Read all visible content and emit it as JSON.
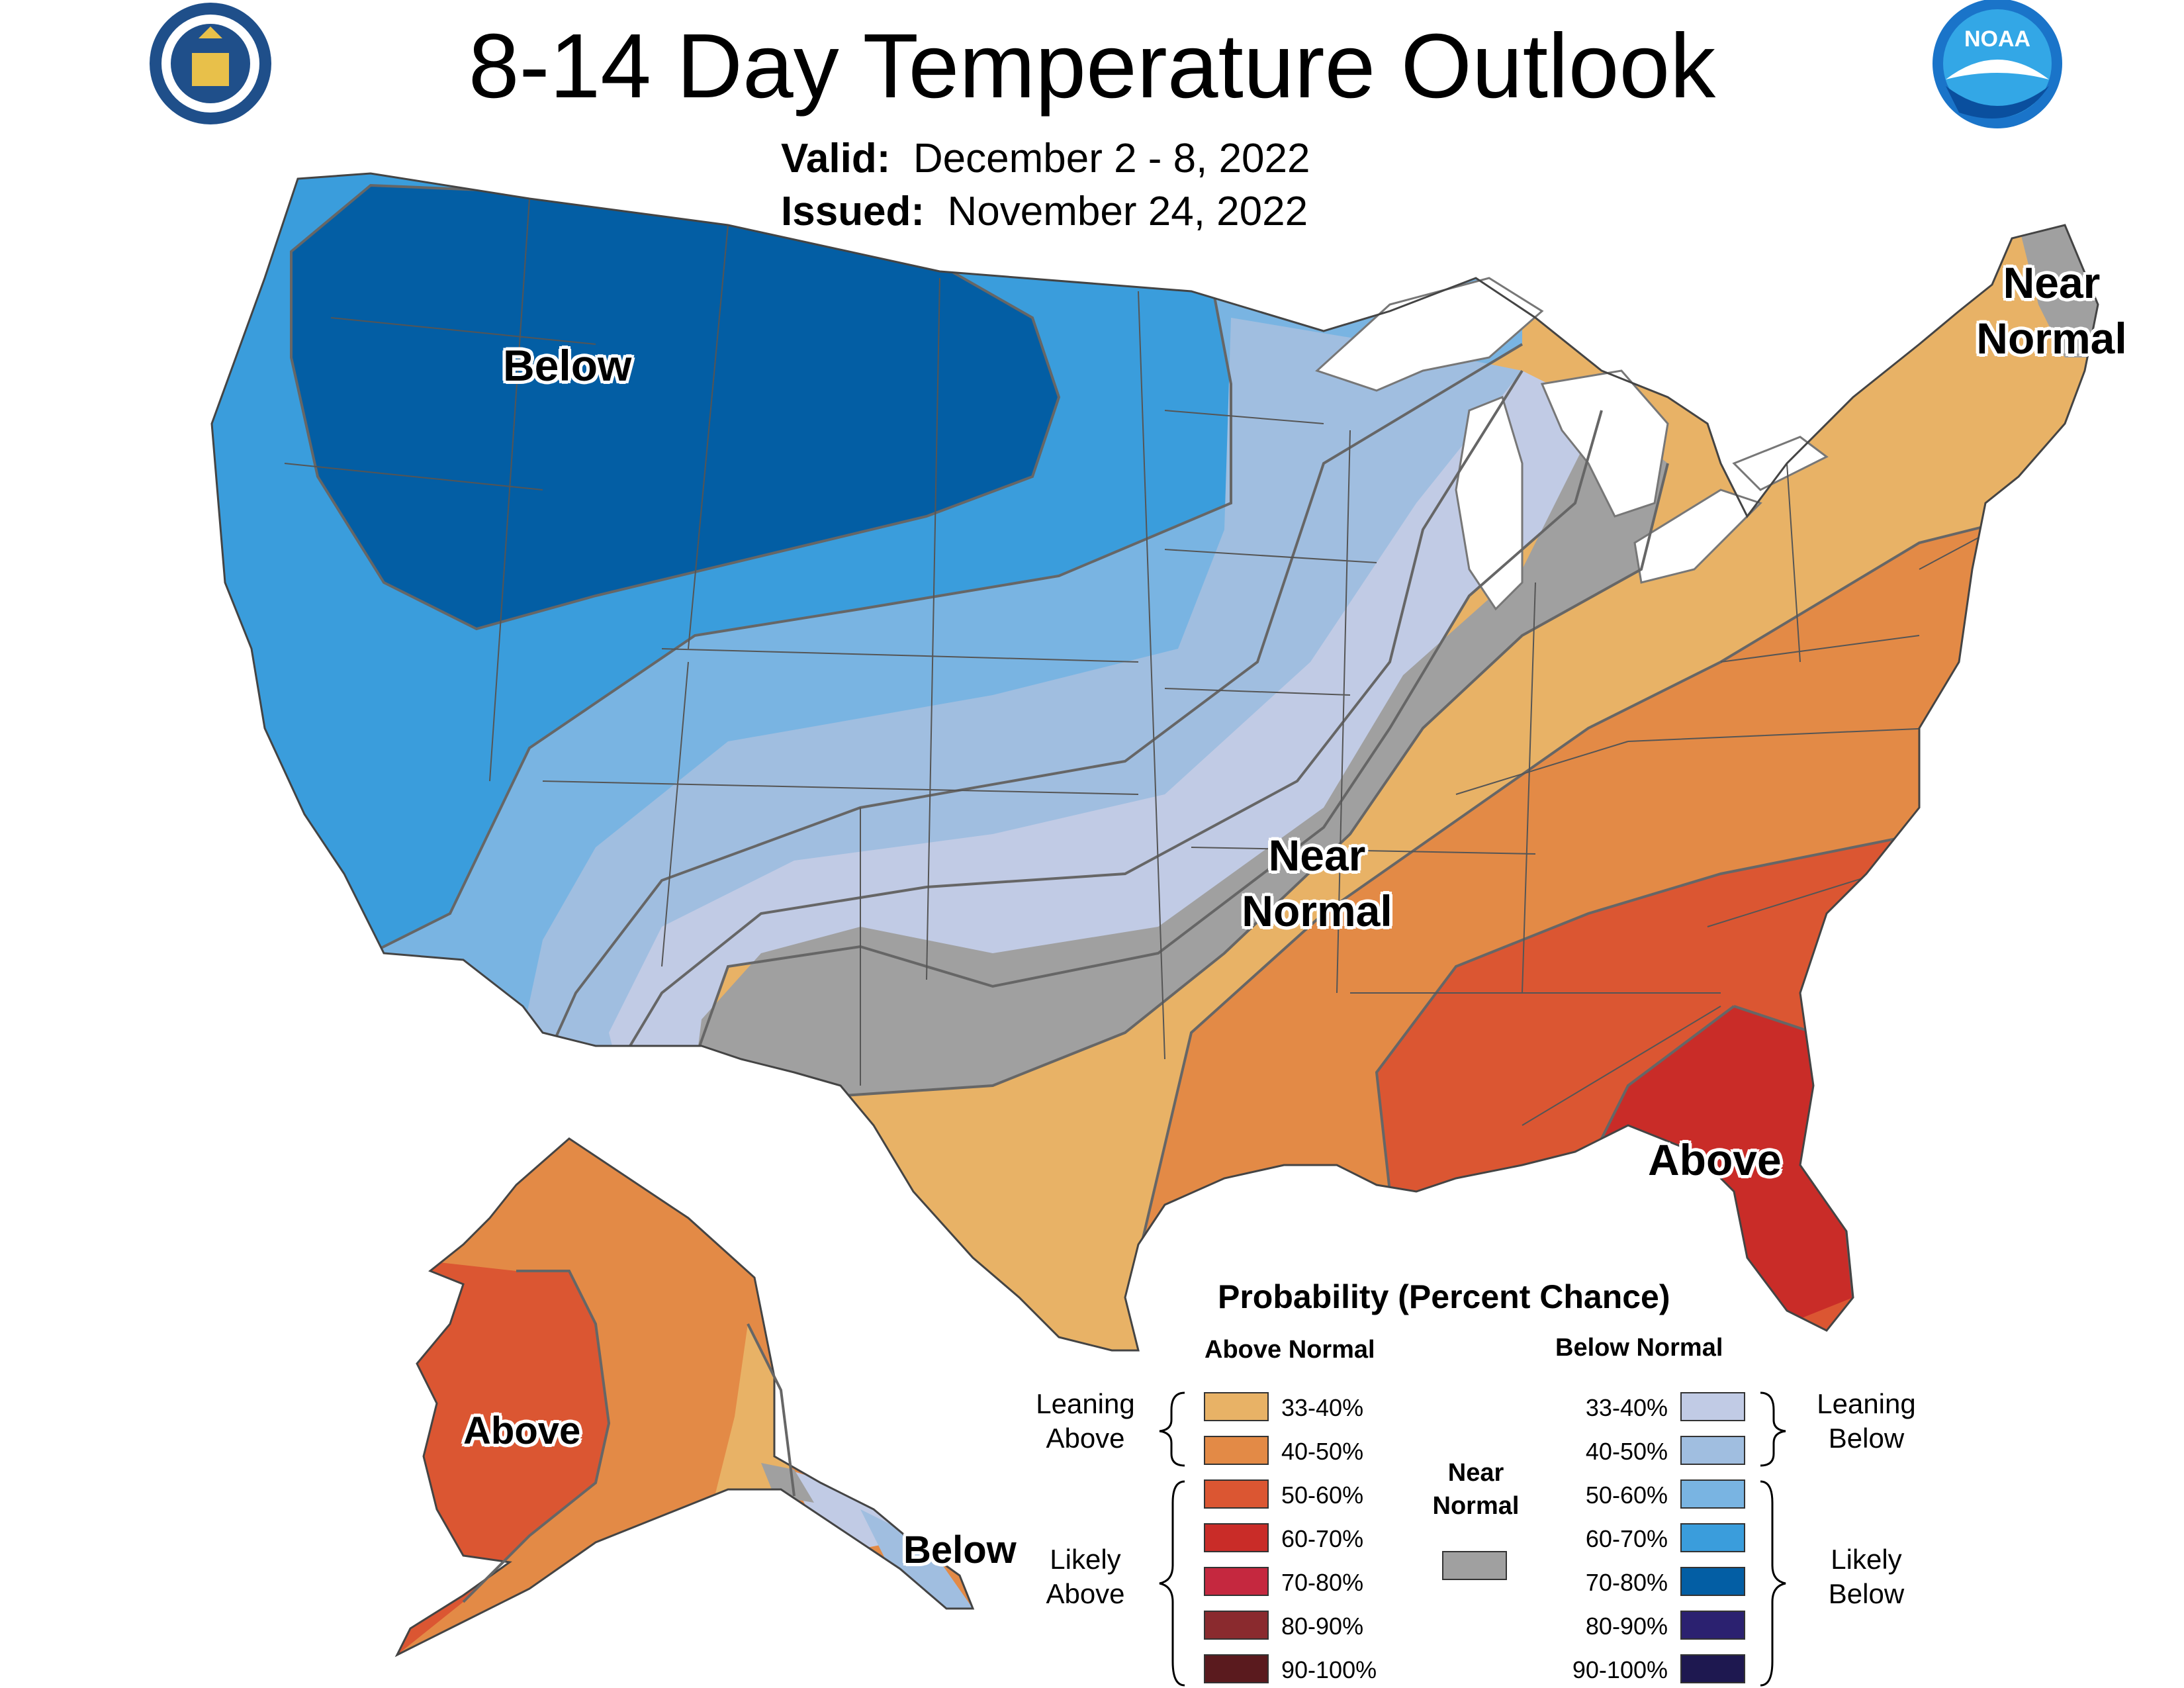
{
  "title": "8-14 Day Temperature Outlook",
  "valid": {
    "label": "Valid:",
    "value": "December 2 - 8, 2022"
  },
  "issued": {
    "label": "Issued:",
    "value": "November 24, 2022"
  },
  "logos": {
    "left": "department-of-commerce-seal",
    "right": "noaa-logo",
    "noaa_text": "NOAA"
  },
  "region_labels": {
    "conus_below": "Below",
    "conus_near_normal": [
      "Near",
      "Normal"
    ],
    "ne_near_normal": [
      "Near",
      "Normal"
    ],
    "conus_above": "Above",
    "alaska_above": "Above",
    "alaska_below": "Below"
  },
  "colors": {
    "above_33_40": "#E8B266",
    "above_40_50": "#E38A46",
    "above_50_60": "#DB5632",
    "above_60_70": "#C92C28",
    "above_70_80": "#C5283F",
    "above_80_90": "#8A2A2E",
    "above_90_100": "#5A1A1E",
    "near_normal": "#A0A0A0",
    "below_33_40": "#C1CBE5",
    "below_40_50": "#A0BEE0",
    "below_50_60": "#79B4E2",
    "below_60_70": "#3A9DDC",
    "below_70_80": "#035EA4",
    "below_80_90": "#2B2170",
    "below_90_100": "#1E1850"
  },
  "legend": {
    "title": "Probability (Percent Chance)",
    "above_heading": "Above Normal",
    "below_heading": "Below Normal",
    "leaning_above": [
      "Leaning",
      "Above"
    ],
    "likely_above": [
      "Likely",
      "Above"
    ],
    "leaning_below": [
      "Leaning",
      "Below"
    ],
    "likely_below": [
      "Likely",
      "Below"
    ],
    "near_normal": [
      "Near",
      "Normal"
    ],
    "ranges": [
      "33-40%",
      "40-50%",
      "50-60%",
      "60-70%",
      "70-80%",
      "80-90%",
      "90-100%"
    ]
  }
}
